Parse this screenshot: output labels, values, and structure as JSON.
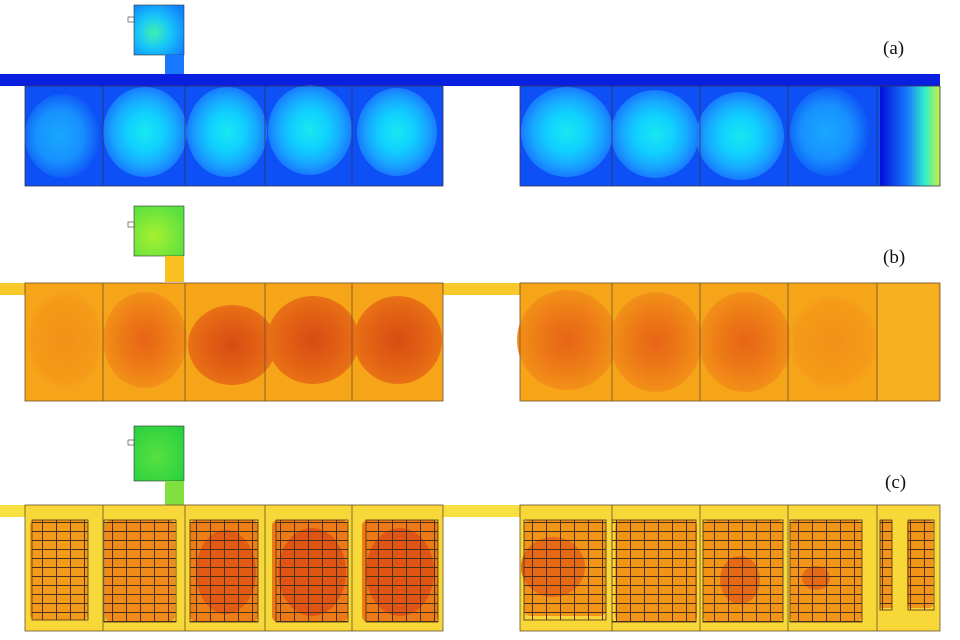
{
  "panels": [
    {
      "label": "(a)",
      "theme": "velocity"
    },
    {
      "label": "(b)",
      "theme": "temperature"
    },
    {
      "label": "(c)",
      "theme": "temperature-with-racks"
    }
  ],
  "colors": {
    "velocity_ramp": [
      "#0010d8",
      "#0a40f2",
      "#1878ff",
      "#18a8ff",
      "#10d0ff",
      "#18e8f0",
      "#30f0c8",
      "#80f080",
      "#c8f040",
      "#f0e020"
    ],
    "temperature_ramp": [
      "#f8e040",
      "#f8c020",
      "#f8a818",
      "#f39018",
      "#ec7a16",
      "#e46214",
      "#d84c12"
    ],
    "outline": "#6a5030",
    "rack_grid": "#4a3018"
  }
}
